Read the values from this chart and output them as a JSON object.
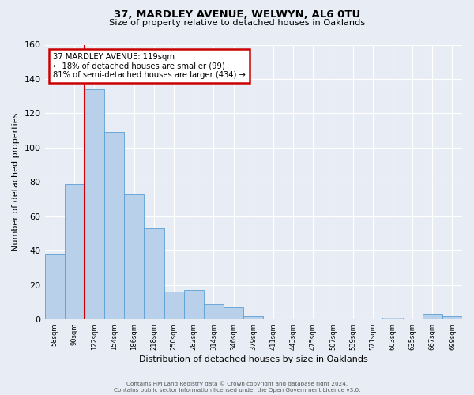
{
  "title": "37, MARDLEY AVENUE, WELWYN, AL6 0TU",
  "subtitle": "Size of property relative to detached houses in Oaklands",
  "xlabel": "Distribution of detached houses by size in Oaklands",
  "ylabel": "Number of detached properties",
  "categories": [
    "58sqm",
    "90sqm",
    "122sqm",
    "154sqm",
    "186sqm",
    "218sqm",
    "250sqm",
    "282sqm",
    "314sqm",
    "346sqm",
    "379sqm",
    "411sqm",
    "443sqm",
    "475sqm",
    "507sqm",
    "539sqm",
    "571sqm",
    "603sqm",
    "635sqm",
    "667sqm",
    "699sqm"
  ],
  "values": [
    38,
    79,
    134,
    109,
    73,
    53,
    16,
    17,
    9,
    7,
    2,
    0,
    0,
    0,
    0,
    0,
    0,
    1,
    0,
    3,
    2
  ],
  "bar_color": "#b8d0ea",
  "bar_edge_color": "#5a9fd4",
  "background_color": "#e8edf5",
  "grid_color": "#ffffff",
  "vline_x_index": 2,
  "vline_color": "#cc0000",
  "annotation_title": "37 MARDLEY AVENUE: 119sqm",
  "annotation_line1": "← 18% of detached houses are smaller (99)",
  "annotation_line2": "81% of semi-detached houses are larger (434) →",
  "annotation_box_color": "#cc0000",
  "ylim": [
    0,
    160
  ],
  "yticks": [
    0,
    20,
    40,
    60,
    80,
    100,
    120,
    140,
    160
  ],
  "footer1": "Contains HM Land Registry data © Crown copyright and database right 2024.",
  "footer2": "Contains public sector information licensed under the Open Government Licence v3.0."
}
